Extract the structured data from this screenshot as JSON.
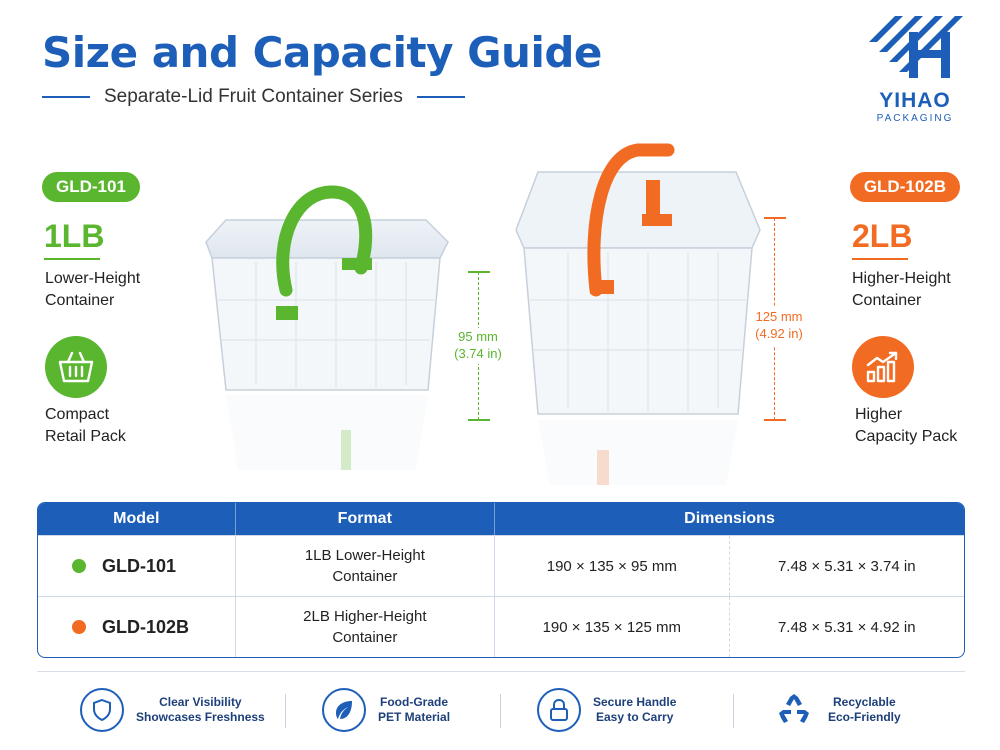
{
  "header": {
    "title": "Size and Capacity Guide",
    "subtitle": "Separate-Lid Fruit Container Series"
  },
  "logo": {
    "brand": "YIHAO",
    "sub": "PACKAGING"
  },
  "left": {
    "model": "GLD-101",
    "capacity": "1LB",
    "desc_line1": "Lower-Height",
    "desc_line2": "Container",
    "feature_line1": "Compact",
    "feature_line2": "Retail Pack",
    "height_mm": "95 mm",
    "height_in": "(3.74 in)",
    "icon": "basket-icon",
    "color": "#5ab52f"
  },
  "right": {
    "model": "GLD-102B",
    "capacity": "2LB",
    "desc_line1": "Higher-Height",
    "desc_line2": "Container",
    "feature_line1": "Higher",
    "feature_line2": "Capacity Pack",
    "height_mm": "125 mm",
    "height_in": "(4.92 in)",
    "icon": "growth-chart-icon",
    "color": "#f26b22"
  },
  "table": {
    "headers": {
      "model": "Model",
      "format": "Format",
      "dimensions": "Dimensions"
    },
    "rows": [
      {
        "model": "GLD-101",
        "format_line1": "1LB Lower-Height",
        "format_line2": "Container",
        "dim_mm": "190 × 135 × 95 mm",
        "dim_in": "7.48 × 5.31 × 3.74 in"
      },
      {
        "model": "GLD-102B",
        "format_line1": "2LB Higher-Height",
        "format_line2": "Container",
        "dim_mm": "190 × 135 × 125 mm",
        "dim_in": "7.48 × 5.31 × 4.92 in"
      }
    ]
  },
  "features": [
    {
      "icon": "shield-icon",
      "line1": "Clear Visibility",
      "line2": "Showcases Freshness"
    },
    {
      "icon": "leaf-icon",
      "line1": "Food-Grade",
      "line2": "PET Material"
    },
    {
      "icon": "lock-icon",
      "line1": "Secure Handle",
      "line2": "Easy to Carry"
    },
    {
      "icon": "recycle-icon",
      "line1": "Recyclable",
      "line2": "Eco-Friendly"
    }
  ]
}
